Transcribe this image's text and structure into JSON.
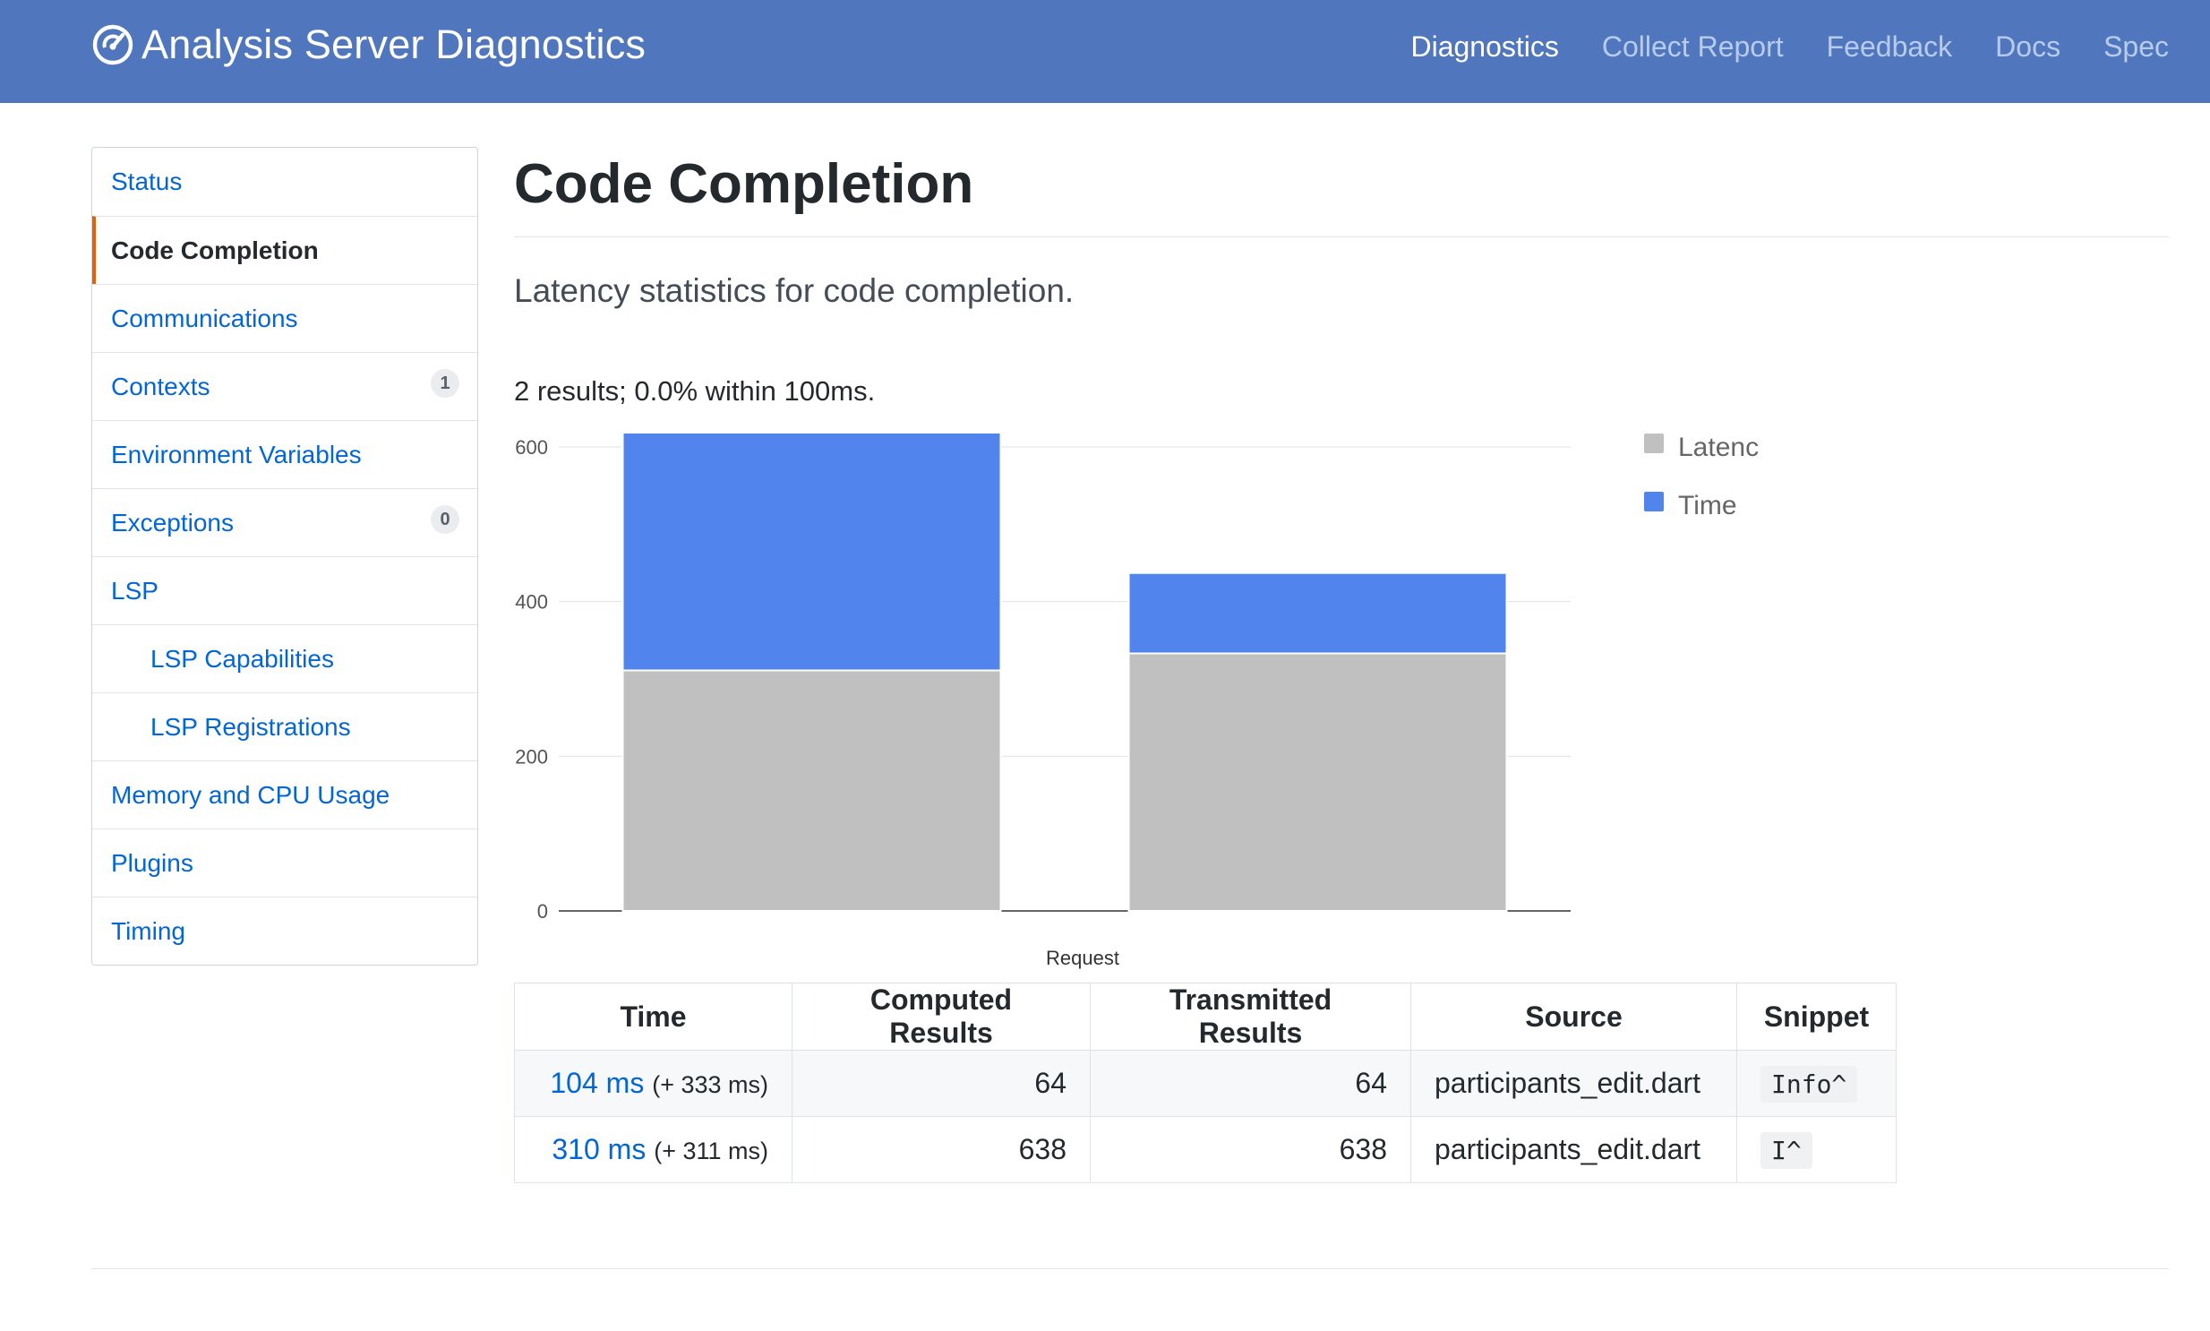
{
  "header": {
    "title": "Analysis Server Diagnostics",
    "nav": [
      {
        "label": "Diagnostics",
        "active": true
      },
      {
        "label": "Collect Report",
        "active": false
      },
      {
        "label": "Feedback",
        "active": false
      },
      {
        "label": "Docs",
        "active": false
      },
      {
        "label": "Spec",
        "active": false
      }
    ]
  },
  "sidebar": {
    "items": [
      {
        "label": "Status"
      },
      {
        "label": "Code Completion",
        "active": true
      },
      {
        "label": "Communications"
      },
      {
        "label": "Contexts",
        "badge": "1"
      },
      {
        "label": "Environment Variables"
      },
      {
        "label": "Exceptions",
        "badge": "0"
      },
      {
        "label": "LSP"
      },
      {
        "label": "LSP Capabilities",
        "sub": true
      },
      {
        "label": "LSP Registrations",
        "sub": true
      },
      {
        "label": "Memory and CPU Usage"
      },
      {
        "label": "Plugins"
      },
      {
        "label": "Timing"
      }
    ]
  },
  "main": {
    "title": "Code Completion",
    "subtitle": "Latency statistics for code completion.",
    "summary": "2 results; 0.0% within 100ms."
  },
  "chart_data": {
    "type": "bar",
    "stacked": true,
    "categories": [
      "",
      ""
    ],
    "series": [
      {
        "name": "Latenc",
        "color": "#c0c0c0",
        "values": [
          311,
          333
        ]
      },
      {
        "name": "Time",
        "color": "#5184ec",
        "values": [
          310,
          104
        ]
      }
    ],
    "xlabel": "Request",
    "ylabel": "",
    "ylim": [
      0,
      600
    ],
    "yticks": [
      "0",
      "200",
      "400",
      "600"
    ],
    "grid": true,
    "legend": "right"
  },
  "table": {
    "headers": [
      "Time",
      "Computed Results",
      "Transmitted Results",
      "Source",
      "Snippet"
    ],
    "rows": [
      {
        "time": "104 ms",
        "extra": "(+ 333 ms)",
        "computed": "64",
        "transmitted": "64",
        "source": "participants_edit.dart",
        "snippet": "Info^"
      },
      {
        "time": "310 ms",
        "extra": "(+ 311 ms)",
        "computed": "638",
        "transmitted": "638",
        "source": "participants_edit.dart",
        "snippet": "I^"
      }
    ]
  }
}
